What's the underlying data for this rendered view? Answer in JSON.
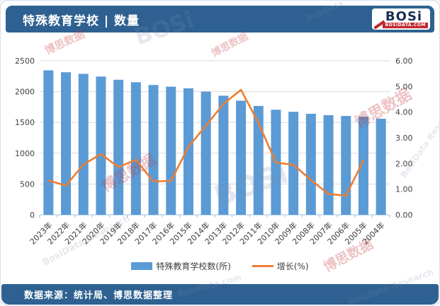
{
  "header": {
    "title": "特殊教育学校 | 数量",
    "logo": {
      "name": "BOSi",
      "domain": "BOSIDATA.COM"
    }
  },
  "footer": {
    "source": "数据来源：统计局、博思数据整理"
  },
  "colors": {
    "brand_blue": "#2e6191",
    "bar_blue": "#5b9bd5",
    "line_orange": "#ed7d31",
    "gridline": "#d9d9d9",
    "axis_line": "#9dc3e6",
    "axis_text": "#3f3f3f",
    "logo_red": "#c2272d",
    "logo_navy": "#1c2e52"
  },
  "watermarks": [
    "博思数据",
    "BOSi",
    "博思数据",
    "BosiData",
    "博思数据",
    "BosiData Research",
    "博思数据",
    "BOSi",
    "BosiData Research",
    "博思数据",
    "BosiData Research",
    "BosiData.com"
  ],
  "chart_data": {
    "type": "bar",
    "subtype": "combo-bar-line",
    "title": "特殊教育学校 | 数量",
    "categories": [
      "2023年",
      "2022年",
      "2021年",
      "2020年",
      "2019年",
      "2018年",
      "2017年",
      "2016年",
      "2015年",
      "2014年",
      "2013年",
      "2012年",
      "2011年",
      "2010年",
      "2009年",
      "2008年",
      "2007年",
      "2006年",
      "2005年",
      "2004年"
    ],
    "series": [
      {
        "name": "特殊教育学校数(所)",
        "type": "bar",
        "axis": "left",
        "color": "#5b9bd5",
        "values": [
          2345,
          2314,
          2288,
          2244,
          2192,
          2152,
          2107,
          2080,
          2053,
          2000,
          1933,
          1853,
          1767,
          1706,
          1672,
          1640,
          1618,
          1605,
          1593,
          1560
        ]
      },
      {
        "name": "增长(%)",
        "type": "line",
        "axis": "right",
        "color": "#ed7d31",
        "values": [
          1.34,
          1.14,
          1.96,
          2.37,
          1.86,
          2.14,
          1.3,
          1.32,
          2.65,
          3.47,
          4.32,
          4.87,
          3.58,
          2.03,
          1.95,
          1.36,
          0.81,
          0.75,
          2.12,
          null
        ]
      }
    ],
    "axes": {
      "left": {
        "min": 0,
        "max": 2500,
        "step": 500,
        "format": "integer"
      },
      "right": {
        "min": 0,
        "max": 6,
        "step": 1,
        "format": "2-decimals"
      }
    },
    "grid": "horizontal",
    "legend_position": "bottom"
  }
}
